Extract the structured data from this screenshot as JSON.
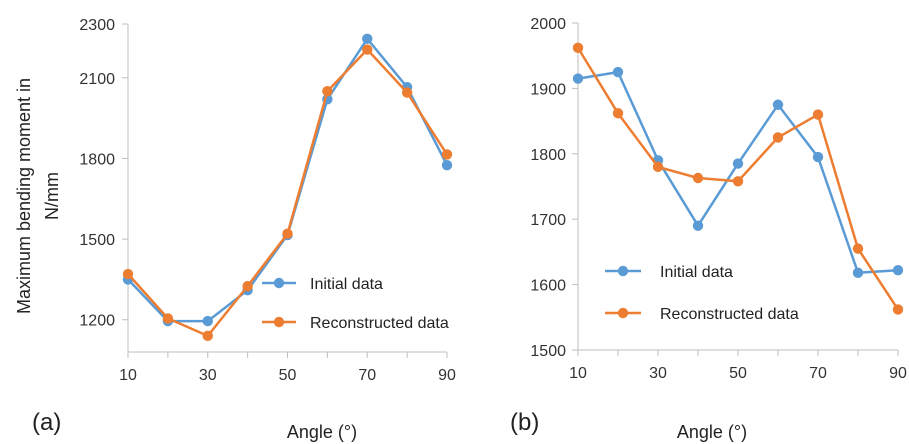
{
  "figure": {
    "xlabel": "Angle (°)",
    "ylabel_line1": "Maximum bending moment in",
    "ylabel_line2": "N/mm"
  },
  "chart_data": [
    {
      "panel_label": "(a)",
      "type": "line",
      "x": [
        10,
        20,
        30,
        40,
        50,
        60,
        70,
        80,
        90
      ],
      "xticks": [
        10,
        30,
        50,
        70,
        90
      ],
      "yticks": [
        1200,
        1500,
        1800,
        2100,
        2300
      ],
      "ylim": [
        1080,
        2300
      ],
      "xlabel": "Angle (°)",
      "ylabel": "Maximum bending moment in N/mm",
      "grid": false,
      "legend": "right-bottom",
      "series": [
        {
          "name": "Initial data",
          "color": "#5B9BD5",
          "values": [
            1350,
            1195,
            1195,
            1310,
            1515,
            2020,
            2245,
            2065,
            1775
          ]
        },
        {
          "name": "Reconstructed data",
          "color": "#ED7D31",
          "values": [
            1370,
            1205,
            1140,
            1325,
            1520,
            2050,
            2205,
            2045,
            1815
          ]
        }
      ]
    },
    {
      "panel_label": "(b)",
      "type": "line",
      "x": [
        10,
        20,
        30,
        40,
        50,
        60,
        70,
        80,
        90
      ],
      "xticks": [
        10,
        30,
        50,
        70,
        90
      ],
      "yticks": [
        1500,
        1600,
        1700,
        1800,
        1900,
        2000
      ],
      "ylim": [
        1500,
        2000
      ],
      "xlabel": "Angle (°)",
      "ylabel": "",
      "grid": false,
      "legend": "left-bottom",
      "series": [
        {
          "name": "Initial data",
          "color": "#5B9BD5",
          "values": [
            1915,
            1925,
            1790,
            1690,
            1785,
            1875,
            1795,
            1618,
            1622
          ]
        },
        {
          "name": "Reconstructed data",
          "color": "#ED7D31",
          "values": [
            1962,
            1862,
            1780,
            1763,
            1758,
            1825,
            1860,
            1655,
            1562
          ]
        }
      ]
    }
  ]
}
